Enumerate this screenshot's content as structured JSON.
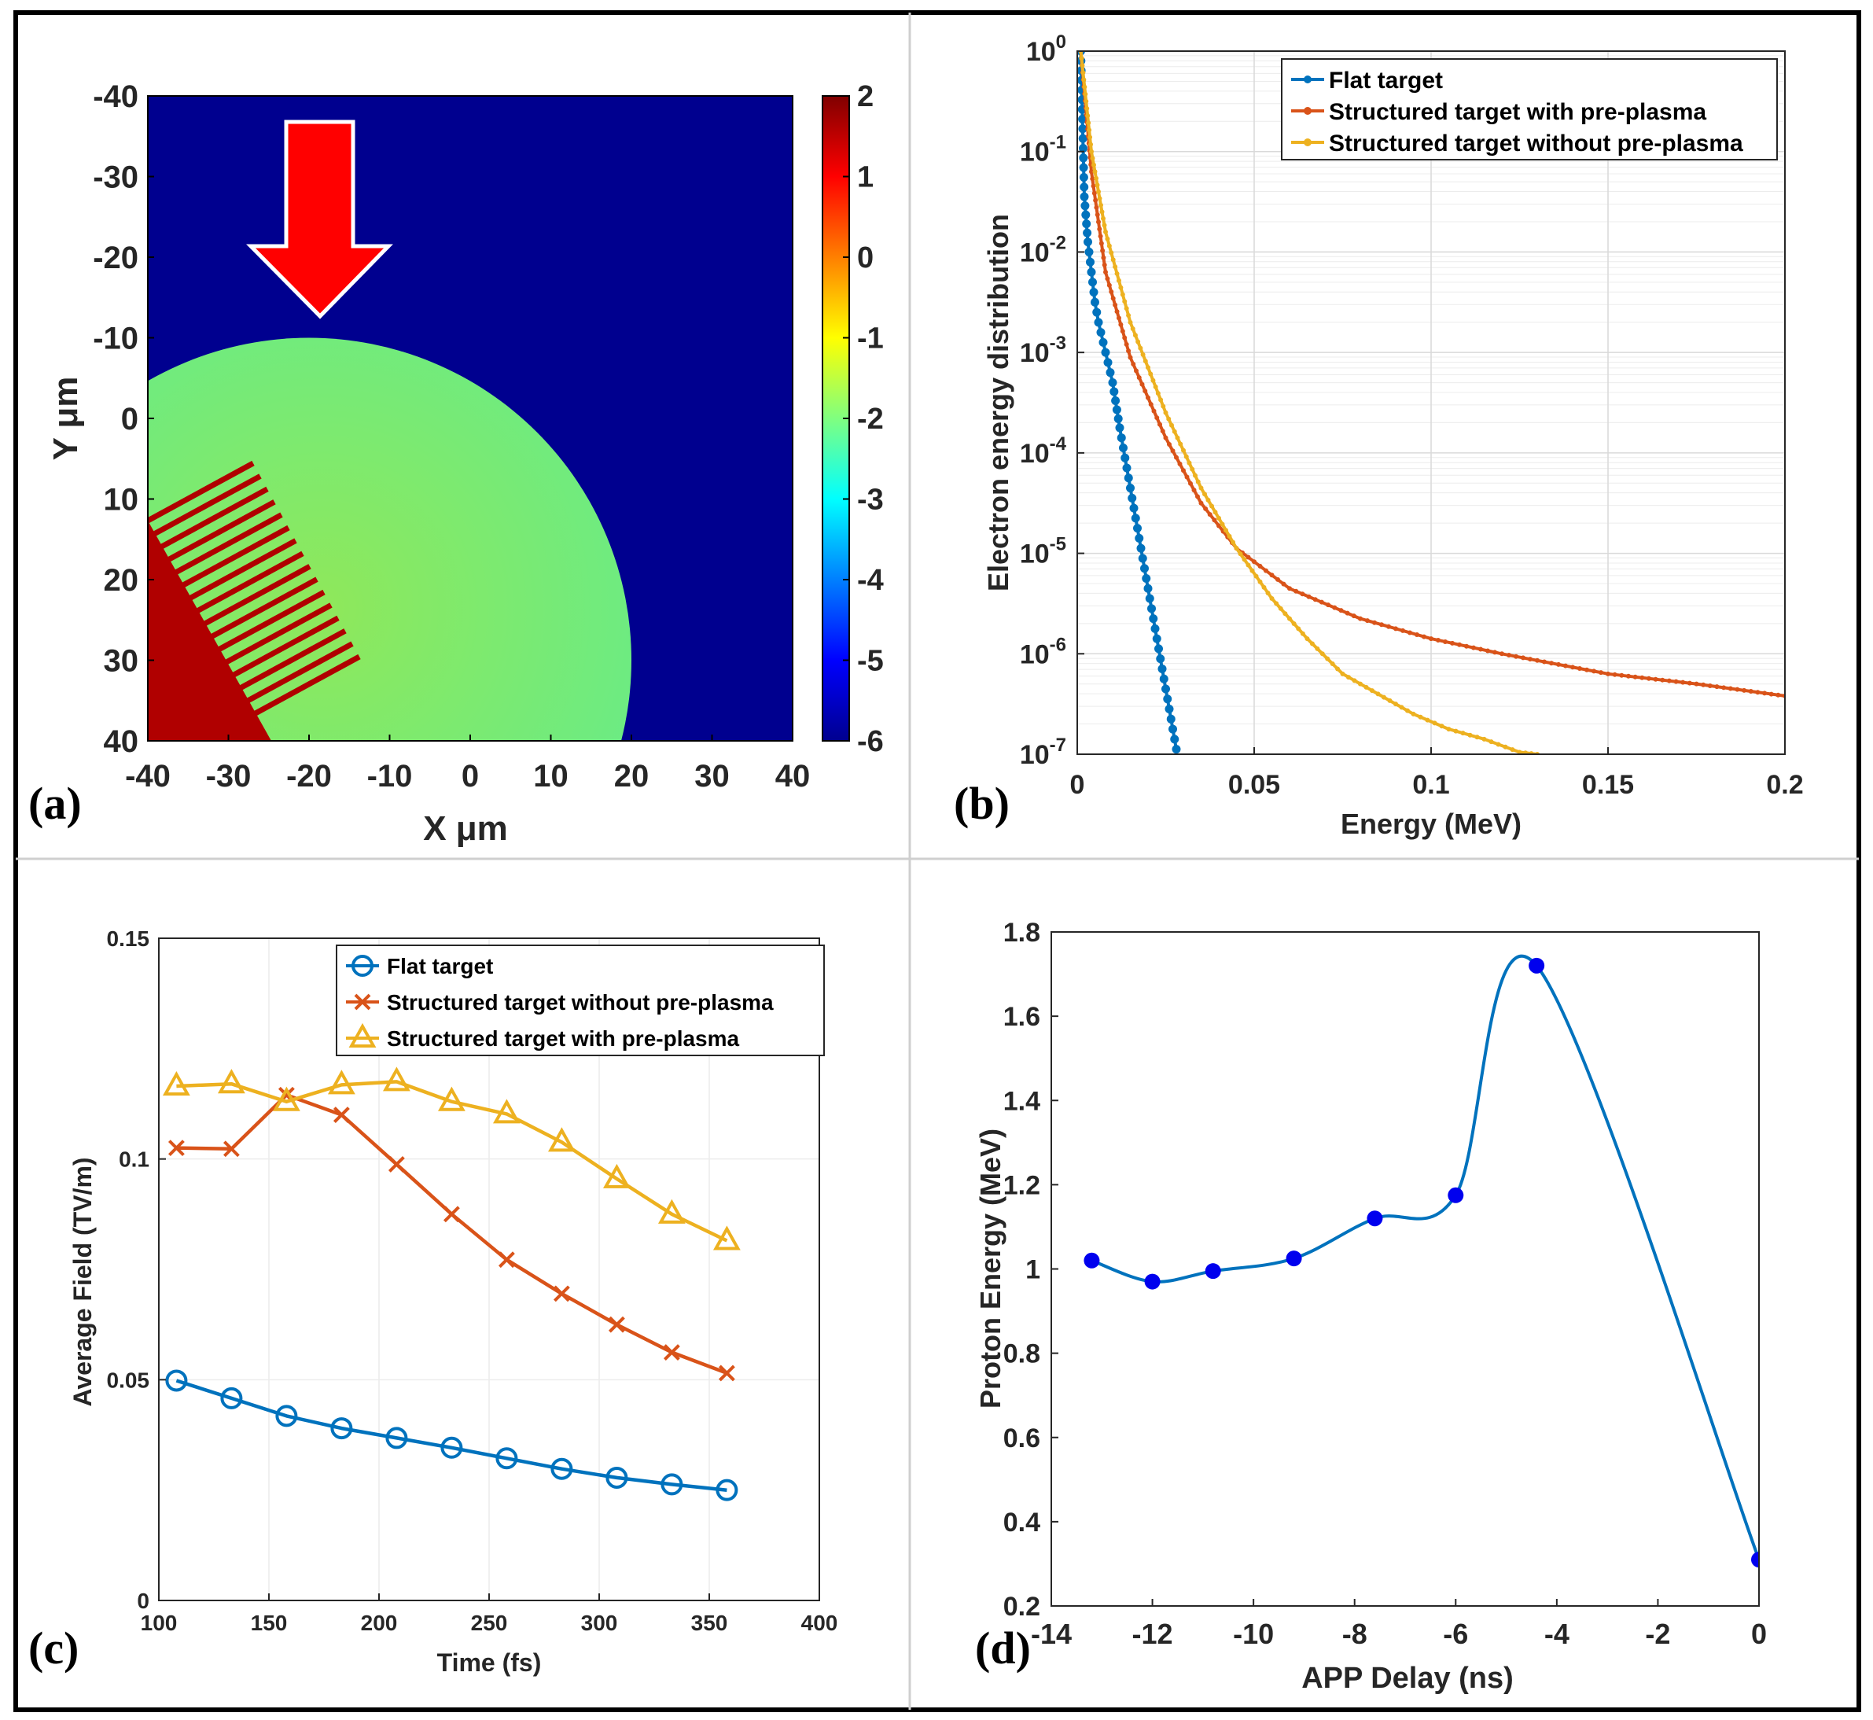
{
  "chart_data": [
    {
      "id": "a",
      "type": "heatmap",
      "panel_label": "(a)",
      "xlabel": "X μm",
      "ylabel": "Y μm",
      "xlim": [
        -40,
        40
      ],
      "ylim": [
        -40,
        40
      ],
      "y_axis_reversed": true,
      "x_ticks": [
        -40,
        -30,
        -20,
        -10,
        0,
        10,
        20,
        30,
        40
      ],
      "y_ticks": [
        -40,
        -30,
        -20,
        -10,
        0,
        10,
        20,
        30,
        40
      ],
      "colorbar": {
        "min": -6,
        "max": 2,
        "ticks": [
          2,
          1,
          0,
          -1,
          -2,
          -3,
          -4,
          -5,
          -6
        ]
      },
      "background_value": -6,
      "disk": {
        "center_x": -20,
        "center_y": 30,
        "radius": 40,
        "value": -2
      },
      "target_region_value": 1.6,
      "arrow": "laser incidence, pointing +Y",
      "stripes": 16
    },
    {
      "id": "b",
      "type": "line",
      "panel_label": "(b)",
      "xlabel": "Energy (MeV)",
      "ylabel": "Electron energy distribution",
      "xlim": [
        0,
        0.2
      ],
      "ylim_log10": [
        -7,
        0
      ],
      "yscale": "log",
      "x_ticks": [
        0,
        0.05,
        0.1,
        0.15,
        0.2
      ],
      "x_tick_labels": [
        "0",
        "0.05",
        "0.1",
        "0.15",
        "0.2"
      ],
      "y_ticks_exp": [
        0,
        -1,
        -2,
        -3,
        -4,
        -5,
        -6,
        -7
      ],
      "legend_position": "top-right",
      "series": [
        {
          "name": "Flat target",
          "color": "#0072BD",
          "marker": "dot",
          "x": [
            0.001,
            0.002,
            0.003,
            0.004,
            0.005,
            0.006,
            0.008,
            0.01,
            0.012,
            0.014,
            0.016,
            0.018,
            0.02,
            0.022,
            0.024,
            0.026,
            0.028
          ],
          "log10y": [
            0,
            -1.45,
            -1.9,
            -2.2,
            -2.5,
            -2.7,
            -3.0,
            -3.3,
            -3.75,
            -4.15,
            -4.55,
            -4.95,
            -5.35,
            -5.75,
            -6.15,
            -6.55,
            -6.95
          ]
        },
        {
          "name": "Structured target with pre-plasma",
          "color": "#D95319",
          "marker": "dot",
          "x": [
            0.001,
            0.004,
            0.008,
            0.015,
            0.025,
            0.035,
            0.045,
            0.06,
            0.08,
            0.1,
            0.12,
            0.15,
            0.175,
            0.2
          ],
          "log10y": [
            0,
            -1.2,
            -2.2,
            -3.05,
            -3.85,
            -4.5,
            -4.95,
            -5.35,
            -5.65,
            -5.85,
            -6.0,
            -6.2,
            -6.3,
            -6.42
          ]
        },
        {
          "name": "Structured target without pre-plasma",
          "color": "#EDB120",
          "marker": "dot",
          "x": [
            0.001,
            0.004,
            0.008,
            0.015,
            0.025,
            0.035,
            0.045,
            0.055,
            0.065,
            0.075,
            0.085,
            0.095,
            0.105,
            0.115,
            0.125,
            0.13
          ],
          "log10y": [
            0,
            -1.0,
            -1.8,
            -2.7,
            -3.6,
            -4.35,
            -4.95,
            -5.45,
            -5.85,
            -6.2,
            -6.4,
            -6.6,
            -6.75,
            -6.85,
            -6.98,
            -7.0
          ]
        }
      ]
    },
    {
      "id": "c",
      "type": "line",
      "panel_label": "(c)",
      "xlabel": "Time (fs)",
      "ylabel": "Average Field (TV/m)",
      "xlim": [
        100,
        400
      ],
      "ylim": [
        0,
        0.15
      ],
      "x_ticks": [
        100,
        150,
        200,
        250,
        300,
        350,
        400
      ],
      "y_ticks": [
        0,
        0.05,
        0.1,
        0.15
      ],
      "y_tick_labels": [
        "0",
        "0.05",
        "0.1",
        "0.15"
      ],
      "legend_position": "top-right",
      "x": [
        108,
        133,
        158,
        183,
        208,
        233,
        258,
        283,
        308,
        333,
        358
      ],
      "series": [
        {
          "name": "Flat target",
          "color": "#0072BD",
          "marker": "circle",
          "values": [
            0.0498,
            0.0458,
            0.0418,
            0.039,
            0.0368,
            0.0346,
            0.0322,
            0.0298,
            0.0278,
            0.0263,
            0.025
          ]
        },
        {
          "name": "Structured target without pre-plasma",
          "color": "#D95319",
          "marker": "x",
          "values": [
            0.1025,
            0.1023,
            0.1145,
            0.11,
            0.0988,
            0.0875,
            0.0772,
            0.0695,
            0.0625,
            0.0562,
            0.0515
          ]
        },
        {
          "name": "Structured target with pre-plasma",
          "color": "#EDB120",
          "marker": "triangle",
          "values": [
            0.1165,
            0.117,
            0.113,
            0.1168,
            0.1175,
            0.113,
            0.1102,
            0.1038,
            0.0955,
            0.0875,
            0.0815
          ]
        }
      ]
    },
    {
      "id": "d",
      "type": "line",
      "panel_label": "(d)",
      "xlabel": "APP Delay (ns)",
      "ylabel": "Proton Energy (MeV)",
      "xlim": [
        -14,
        0
      ],
      "ylim": [
        0.2,
        1.8
      ],
      "x_ticks": [
        -14,
        -12,
        -10,
        -8,
        -6,
        -4,
        -2,
        0
      ],
      "y_ticks": [
        0.2,
        0.4,
        0.6,
        0.8,
        1,
        1.2,
        1.4,
        1.6,
        1.8
      ],
      "y_tick_labels": [
        "0.2",
        "0.4",
        "0.6",
        "0.8",
        "1",
        "1.2",
        "1.4",
        "1.6",
        "1.8"
      ],
      "series": [
        {
          "name": "Proton energy",
          "color": "#0072BD",
          "marker_color": "#0000EE",
          "x": [
            -13.2,
            -12.0,
            -10.8,
            -9.2,
            -7.6,
            -6.0,
            -4.4,
            0.0
          ],
          "values": [
            1.02,
            0.97,
            0.995,
            1.025,
            1.12,
            1.175,
            1.72,
            0.31
          ]
        }
      ]
    }
  ]
}
